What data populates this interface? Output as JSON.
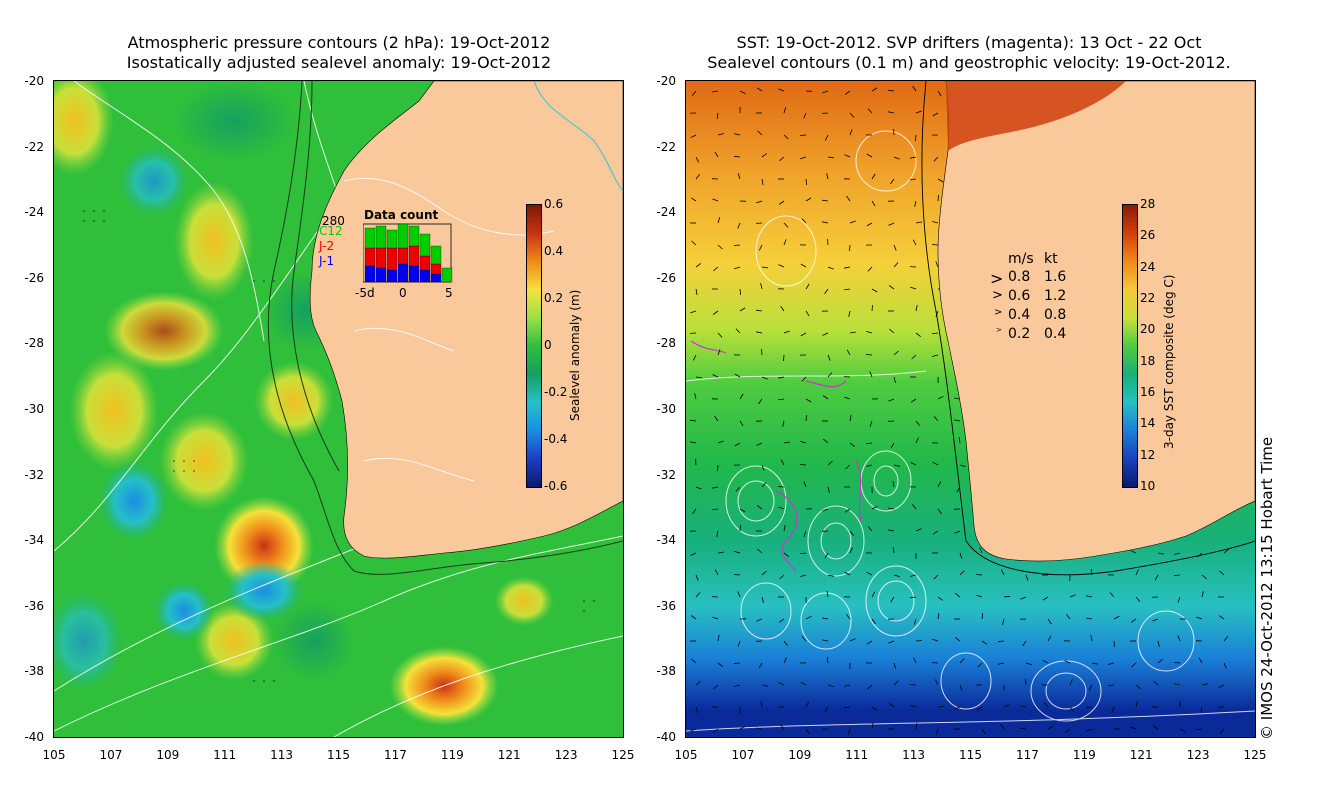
{
  "left_map": {
    "title_line1": "Atmospheric pressure contours (2 hPa): 19-Oct-2012",
    "title_line2": "Isostatically adjusted sealevel anomaly: 19-Oct-2012",
    "colorbar": {
      "label": "Sealevel anomaly (m)",
      "ticks": [
        "0.6",
        "0.4",
        "0.2",
        "0",
        "-0.2",
        "-0.4",
        "-0.6"
      ]
    },
    "data_count": {
      "title": "Data count",
      "max_label": "280",
      "legend": [
        "C12",
        "J-2",
        "J-1"
      ],
      "legend_colors": [
        "#00cc00",
        "#ee0000",
        "#0000ee"
      ],
      "xticks": [
        "-5d",
        "0",
        "5"
      ]
    }
  },
  "right_map": {
    "title_line1": "SST: 19-Oct-2012. SVP drifters (magenta): 13 Oct - 22 Oct",
    "title_line2": "Sealevel contours (0.1 m) and geostrophic velocity: 19-Oct-2012.",
    "colorbar": {
      "label": "3-day SST composite (deg C)",
      "ticks": [
        "28",
        "26",
        "24",
        "22",
        "20",
        "18",
        "16",
        "14",
        "12",
        "10"
      ]
    },
    "velocity_legend": {
      "header_ms": "m/s",
      "header_kt": "kt",
      "rows": [
        {
          "ms": "0.8",
          "kt": "1.6"
        },
        {
          "ms": "0.6",
          "kt": "1.2"
        },
        {
          "ms": "0.4",
          "kt": "0.8"
        },
        {
          "ms": "0.2",
          "kt": "0.4"
        }
      ]
    }
  },
  "axes": {
    "y_ticks": [
      "-20",
      "-22",
      "-24",
      "-26",
      "-28",
      "-30",
      "-32",
      "-34",
      "-36",
      "-38",
      "-40"
    ],
    "x_ticks": [
      "105",
      "107",
      "109",
      "111",
      "113",
      "115",
      "117",
      "119",
      "121",
      "123",
      "125"
    ]
  },
  "credit": "© IMOS 24-Oct-2012 13:15 Hobart Time",
  "colors": {
    "land": "#f9c89b",
    "ocean_green": "#2fbf3a",
    "drifter": "#cc33cc"
  }
}
